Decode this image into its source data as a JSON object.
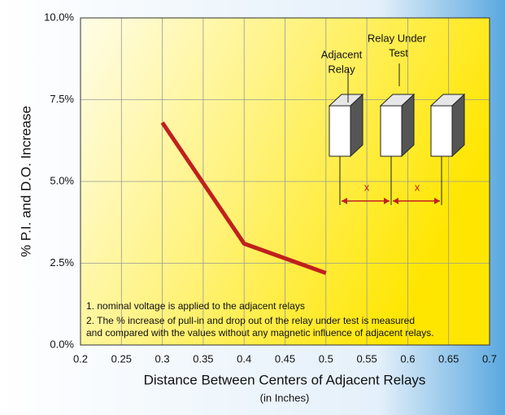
{
  "chart_data": {
    "type": "line",
    "x_label": "Distance Between Centers of Adjacent Relays",
    "x_sublabel": "(in Inches)",
    "y_label": "% P.I. and D.O. Increase",
    "x": [
      0.3,
      0.4,
      0.5
    ],
    "values": [
      6.8,
      3.1,
      2.2
    ],
    "color": "#c0201c",
    "xlim": [
      0.2,
      0.7
    ],
    "xticks": [
      0.2,
      0.25,
      0.3,
      0.35,
      0.4,
      0.45,
      0.5,
      0.55,
      0.6,
      0.65,
      0.7
    ],
    "ylim": [
      0,
      10
    ],
    "yticks": [
      {
        "value": 0,
        "label": "0.0%"
      },
      {
        "value": 2.5,
        "label": "2.5%"
      },
      {
        "value": 5,
        "label": "5.0%"
      },
      {
        "value": 7.5,
        "label": "7.5%"
      },
      {
        "value": 10,
        "label": "10.0%"
      }
    ],
    "grid": true,
    "diagram_labels": [
      "Adjacent",
      "Relay",
      "Relay Under",
      "Test",
      "x",
      "x"
    ],
    "notes": [
      "1. nominal voltage is applied to the adjacent relays",
      "2. The % increase of pull-in and drop out of the relay under test is measured",
      "and compared with the values without any magnetic influence of adjacent relays."
    ]
  }
}
